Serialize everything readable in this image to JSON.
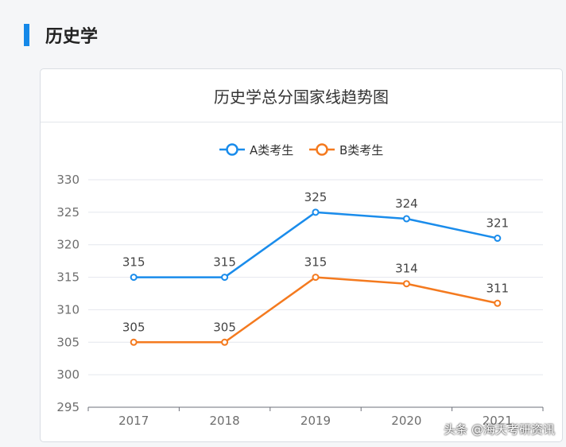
{
  "section": {
    "title": "历史学"
  },
  "watermark": {
    "text": "头条 @海天考研资讯"
  },
  "chart_data": {
    "type": "line",
    "title": "历史学总分国家线趋势图",
    "categories": [
      "2017",
      "2018",
      "2019",
      "2020",
      "2021"
    ],
    "ylim": [
      295,
      330
    ],
    "yticks": [
      295,
      300,
      305,
      310,
      315,
      320,
      325,
      330
    ],
    "grid": true,
    "legend": "top-center",
    "series": [
      {
        "name": "A类考生",
        "color": "#1a8ceb",
        "values": [
          315,
          315,
          325,
          324,
          321
        ]
      },
      {
        "name": "B类考生",
        "color": "#f47a1f",
        "values": [
          305,
          305,
          315,
          314,
          311
        ]
      }
    ]
  }
}
